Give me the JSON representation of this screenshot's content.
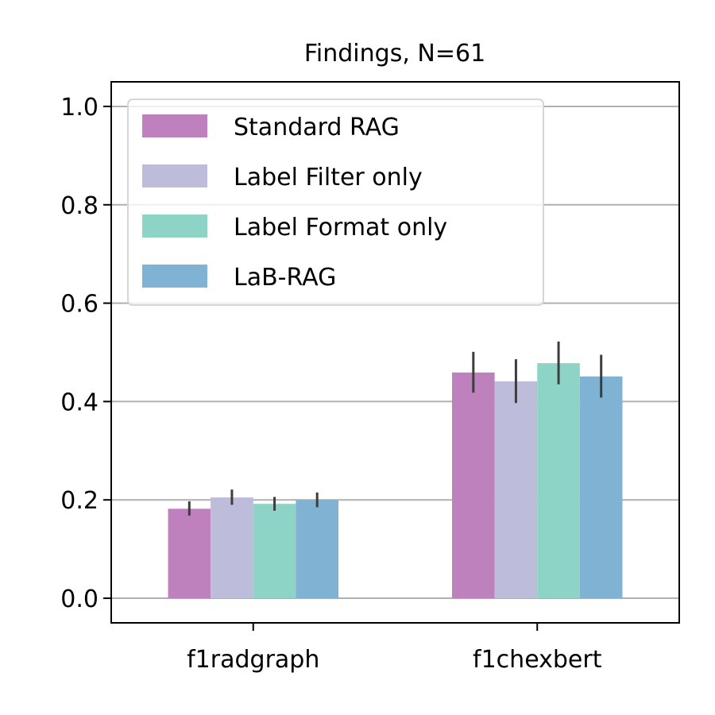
{
  "chart_data": {
    "type": "bar",
    "title": "Findings, N=61",
    "categories": [
      "f1radgraph",
      "f1chexbert"
    ],
    "series": [
      {
        "name": "Standard RAG",
        "color": "#bf81bd",
        "values": [
          0.182,
          0.459
        ],
        "errors": [
          [
            0.168,
            0.197
          ],
          [
            0.418,
            0.501
          ]
        ]
      },
      {
        "name": "Label Filter only",
        "color": "#bebcdb",
        "values": [
          0.205,
          0.441
        ],
        "errors": [
          [
            0.19,
            0.221
          ],
          [
            0.397,
            0.486
          ]
        ]
      },
      {
        "name": "Label Format only",
        "color": "#8dd4c6",
        "values": [
          0.192,
          0.478
        ],
        "errors": [
          [
            0.178,
            0.206
          ],
          [
            0.435,
            0.522
          ]
        ]
      },
      {
        "name": "LaB-RAG",
        "color": "#80b2d4",
        "values": [
          0.2,
          0.451
        ],
        "errors": [
          [
            0.185,
            0.215
          ],
          [
            0.408,
            0.495
          ]
        ]
      }
    ],
    "ylim": [
      -0.05,
      1.05
    ],
    "yticks": [
      0.0,
      0.2,
      0.4,
      0.6,
      0.8,
      1.0
    ],
    "ytick_labels": [
      "0.0",
      "0.2",
      "0.4",
      "0.6",
      "0.8",
      "1.0"
    ],
    "grid": "y",
    "legend_position": "upper-left"
  }
}
